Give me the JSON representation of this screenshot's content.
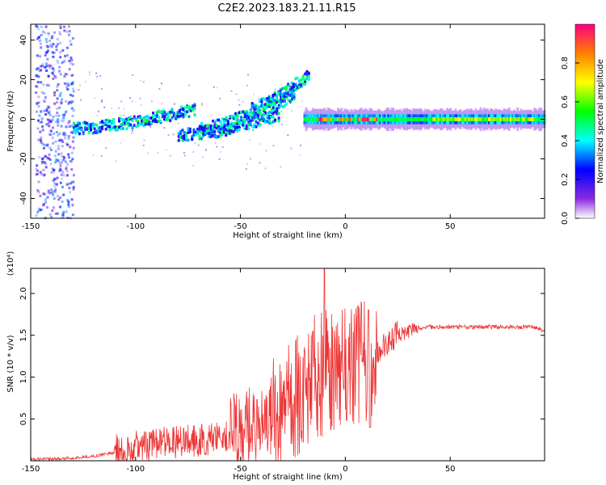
{
  "title": "C2E2.2023.183.21.11.R15",
  "colors": {
    "snr_line": "#ee3333",
    "axis": "#000000"
  },
  "chart_data": [
    {
      "type": "heatmap",
      "xlabel": "Height of straight line (km)",
      "ylabel": "Frequency (Hz)",
      "xlim": [
        -150,
        95
      ],
      "ylim": [
        -50,
        48
      ],
      "xticks": [
        "-150",
        "-100",
        "-50",
        "0",
        "50"
      ],
      "yticks": [
        "40",
        "20",
        "0",
        "-20",
        "-40"
      ],
      "colorbar": {
        "label": "Normalized spectral amplitude",
        "ticks": [
          "0.0",
          "0.2",
          "0.4",
          "0.6",
          "0.8"
        ],
        "range": [
          0,
          1
        ]
      },
      "ridges": [
        {
          "x": [
            -130,
            -120,
            -110,
            -100,
            -90,
            -80,
            -72
          ],
          "y": [
            -5,
            -4,
            -3,
            -1,
            1,
            3,
            5
          ]
        },
        {
          "x": [
            -80,
            -70,
            -60,
            -50,
            -40,
            -32
          ],
          "y": [
            -8,
            -7,
            -6,
            -3,
            0,
            2
          ]
        },
        {
          "x": [
            -70,
            -62,
            -55,
            -48,
            -40,
            -32,
            -25
          ],
          "y": [
            -5,
            -3,
            -1,
            2,
            5,
            8,
            12
          ]
        },
        {
          "x": [
            -45,
            -35,
            -25,
            -18
          ],
          "y": [
            5,
            10,
            17,
            22
          ]
        }
      ],
      "band": {
        "x": [
          -20,
          95
        ],
        "y": 0
      }
    },
    {
      "type": "line",
      "xlabel": "Height of straight line (km)",
      "ylabel": "SNR (10 * v/v)",
      "yscale_label": "(x10⁴)",
      "xlim": [
        -150,
        95
      ],
      "ylim": [
        0,
        2.3
      ],
      "xticks": [
        "-150",
        "-100",
        "-50",
        "0",
        "50"
      ],
      "yticks": [
        "0.5",
        "1.0",
        "1.5",
        "2.0"
      ],
      "series": [
        {
          "x": [
            -150,
            -140,
            -130,
            -120,
            -110,
            -100,
            -90,
            -80,
            -70,
            -60,
            -50,
            -45,
            -40,
            -35,
            -30,
            -25,
            -20,
            -15,
            -10,
            -5,
            0,
            5,
            10,
            15,
            20,
            25,
            30,
            35,
            40,
            50,
            60,
            70,
            80,
            90,
            95
          ],
          "y": [
            0.02,
            0.02,
            0.03,
            0.05,
            0.1,
            0.15,
            0.18,
            0.2,
            0.22,
            0.25,
            0.3,
            0.35,
            0.4,
            0.45,
            0.55,
            0.65,
            0.8,
            0.9,
            0.95,
            1.0,
            1.05,
            1.1,
            1.15,
            1.25,
            1.4,
            1.5,
            1.55,
            1.58,
            1.6,
            1.6,
            1.6,
            1.6,
            1.6,
            1.6,
            1.55
          ]
        }
      ]
    }
  ]
}
